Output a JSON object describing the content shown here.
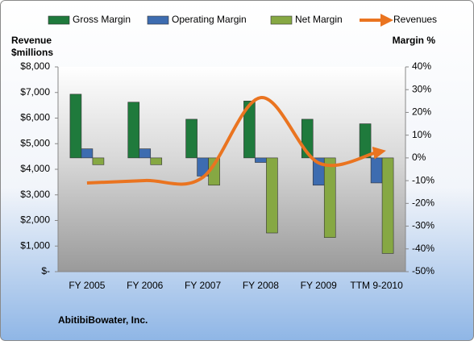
{
  "chart_data": {
    "type": "bar",
    "footer": "AbitibiBowater, Inc.",
    "ylabel": [
      "Revenue",
      "$millions"
    ],
    "y2label": "Margin %",
    "legend": "top",
    "categories": [
      "FY 2005",
      "FY 2006",
      "FY 2007",
      "FY 2008",
      "FY 2009",
      "TTM 9-2010"
    ],
    "series": [
      {
        "name": "Gross Margin",
        "color": "#1f7a3c",
        "axis": "y2",
        "values": [
          28,
          24.5,
          17,
          25,
          17,
          15
        ]
      },
      {
        "name": "Operating Margin",
        "color": "#3d6cb0",
        "axis": "y2",
        "values": [
          4,
          4,
          -8,
          -2,
          -12,
          -11
        ]
      },
      {
        "name": "Net Margin",
        "color": "#86a843",
        "axis": "y2",
        "values": [
          -3,
          -3,
          -12,
          -33,
          -35,
          -42
        ]
      },
      {
        "name": "Revenues",
        "color": "#ea7420",
        "type": "line",
        "values": [
          3465,
          3560,
          3685,
          6800,
          4250,
          4660
        ]
      }
    ],
    "ylim": [
      0,
      8000
    ],
    "yticks": [
      {
        "value": 0,
        "label": "$-"
      },
      {
        "value": 1000,
        "label": "$1,000"
      },
      {
        "value": 2000,
        "label": "$2,000"
      },
      {
        "value": 3000,
        "label": "$3,000"
      },
      {
        "value": 4000,
        "label": "$4,000"
      },
      {
        "value": 5000,
        "label": "$5,000"
      },
      {
        "value": 6000,
        "label": "$6,000"
      },
      {
        "value": 7000,
        "label": "$7,000"
      },
      {
        "value": 8000,
        "label": "$8,000"
      }
    ],
    "y2lim": [
      -50,
      40
    ],
    "y2ticks": [
      {
        "value": -50,
        "label": "-50%"
      },
      {
        "value": -40,
        "label": "-40%"
      },
      {
        "value": -30,
        "label": "-30%"
      },
      {
        "value": -20,
        "label": "-20%"
      },
      {
        "value": -10,
        "label": "-10%"
      },
      {
        "value": 0,
        "label": "0%"
      },
      {
        "value": 10,
        "label": "10%"
      },
      {
        "value": 20,
        "label": "20%"
      },
      {
        "value": 30,
        "label": "30%"
      },
      {
        "value": 40,
        "label": "40%"
      }
    ]
  }
}
